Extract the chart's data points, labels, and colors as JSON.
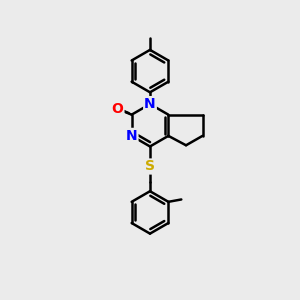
{
  "bg_color": "#ebebeb",
  "bond_color": "#000000",
  "bond_width": 1.8,
  "atom_colors": {
    "N": "#0000ff",
    "O": "#ff0000",
    "S": "#ccaa00",
    "C": "#000000"
  },
  "font_size": 10
}
